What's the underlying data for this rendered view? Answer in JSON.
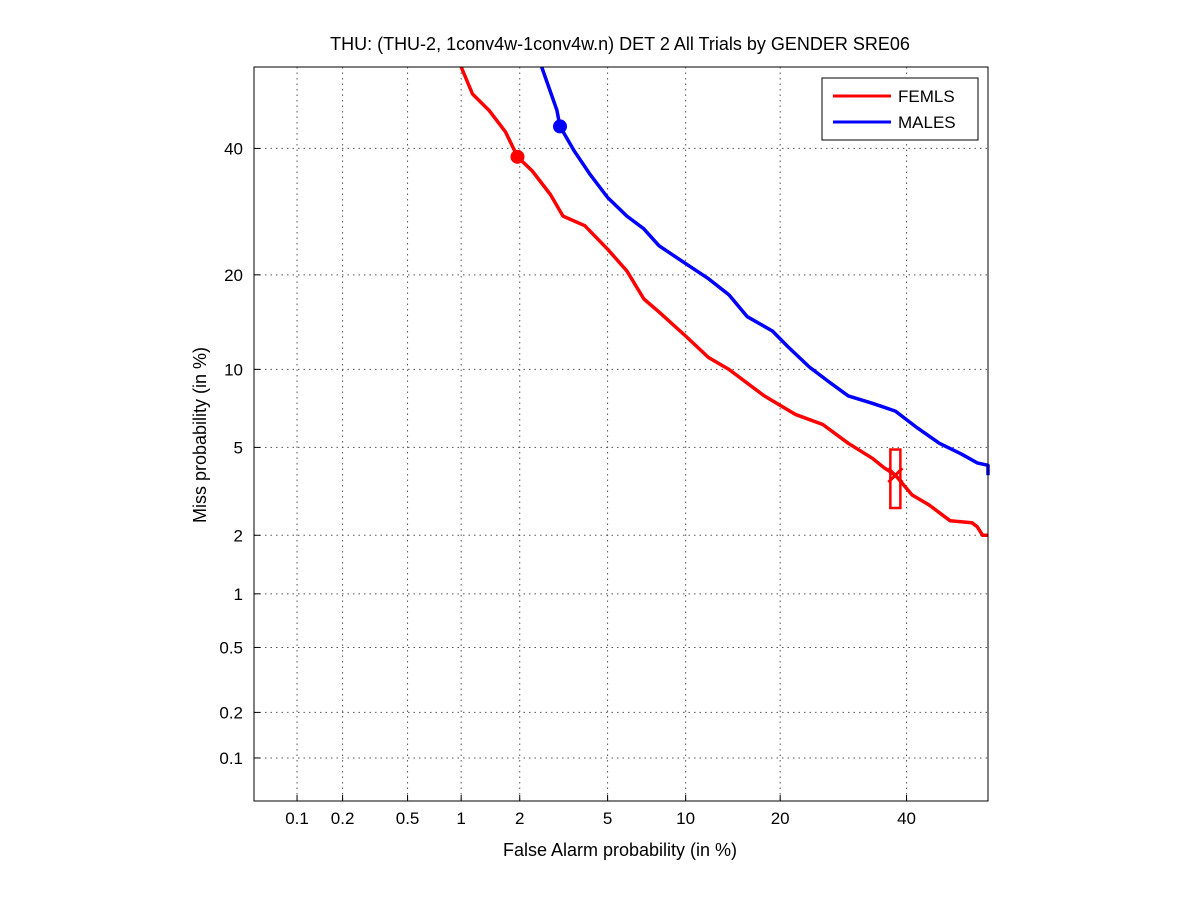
{
  "chart_data": {
    "type": "line",
    "title": "THU: (THU-2, 1conv4w-1conv4w.n) DET 2 All Trials by GENDER SRE06",
    "xlabel": "False Alarm probability (in %)",
    "ylabel": "Miss probability (in %)",
    "scale": "normal-deviate (probit)",
    "xlim": [
      0.05,
      55
    ],
    "ylim": [
      0.05,
      55
    ],
    "xticks": [
      0.1,
      0.2,
      0.5,
      1,
      2,
      5,
      10,
      20,
      40
    ],
    "xtick_labels": [
      "0.1",
      "0.2",
      "0.5",
      "1",
      "2",
      "5",
      "10",
      "20",
      "40"
    ],
    "yticks": [
      0.1,
      0.2,
      0.5,
      1,
      2,
      5,
      10,
      20,
      40
    ],
    "ytick_labels": [
      "0.1",
      "0.2",
      "0.5",
      "1",
      "2",
      "5",
      "10",
      "20",
      "40"
    ],
    "grid": true,
    "legend_position": "top-right",
    "series": [
      {
        "name": "FEMLS",
        "color": "#ff0000",
        "points": [
          [
            1.0,
            55
          ],
          [
            1.15,
            50
          ],
          [
            1.4,
            47
          ],
          [
            1.7,
            43
          ],
          [
            1.95,
            38.5
          ],
          [
            2.3,
            36
          ],
          [
            2.8,
            32
          ],
          [
            3.2,
            28.5
          ],
          [
            4.0,
            27
          ],
          [
            5.0,
            23.5
          ],
          [
            6.0,
            20.5
          ],
          [
            7.0,
            17
          ],
          [
            8.0,
            15.5
          ],
          [
            10.0,
            13
          ],
          [
            12.0,
            11
          ],
          [
            14.0,
            10
          ],
          [
            18.0,
            8
          ],
          [
            22.0,
            6.8
          ],
          [
            26.0,
            6.2
          ],
          [
            30.0,
            5.2
          ],
          [
            34.0,
            4.5
          ],
          [
            36.0,
            4.1
          ],
          [
            38.0,
            3.8
          ],
          [
            41.0,
            3.1
          ],
          [
            44.0,
            2.8
          ],
          [
            48.0,
            2.35
          ],
          [
            52.0,
            2.3
          ],
          [
            53.0,
            2.2
          ],
          [
            54.0,
            2.0
          ],
          [
            55.0,
            2.0
          ]
        ],
        "min_dcf_marker": [
          1.95,
          38.5
        ],
        "act_dcf_marker": [
          38.0,
          3.8
        ],
        "act_dcf_box": {
          "x": 38.0,
          "y_low": 2.7,
          "y_high": 4.9
        }
      },
      {
        "name": "MALES",
        "color": "#0000ff",
        "points": [
          [
            2.55,
            55
          ],
          [
            3.0,
            47
          ],
          [
            3.1,
            44
          ],
          [
            3.6,
            39.5
          ],
          [
            4.2,
            35.5
          ],
          [
            5.0,
            31.5
          ],
          [
            6.0,
            28.5
          ],
          [
            7.0,
            26.5
          ],
          [
            8.0,
            24
          ],
          [
            10.0,
            21.5
          ],
          [
            12.0,
            19.5
          ],
          [
            14.0,
            17.5
          ],
          [
            16.0,
            15
          ],
          [
            19.0,
            13.5
          ],
          [
            21.0,
            12.0
          ],
          [
            24.0,
            10.2
          ],
          [
            27.0,
            9.0
          ],
          [
            30.0,
            8.0
          ],
          [
            34.0,
            7.5
          ],
          [
            38.0,
            7.0
          ],
          [
            42.0,
            6.0
          ],
          [
            46.0,
            5.2
          ],
          [
            50.0,
            4.7
          ],
          [
            53.0,
            4.3
          ],
          [
            55.0,
            4.2
          ],
          [
            55.0,
            3.8
          ]
        ],
        "min_dcf_marker": [
          3.1,
          44
        ]
      }
    ]
  }
}
